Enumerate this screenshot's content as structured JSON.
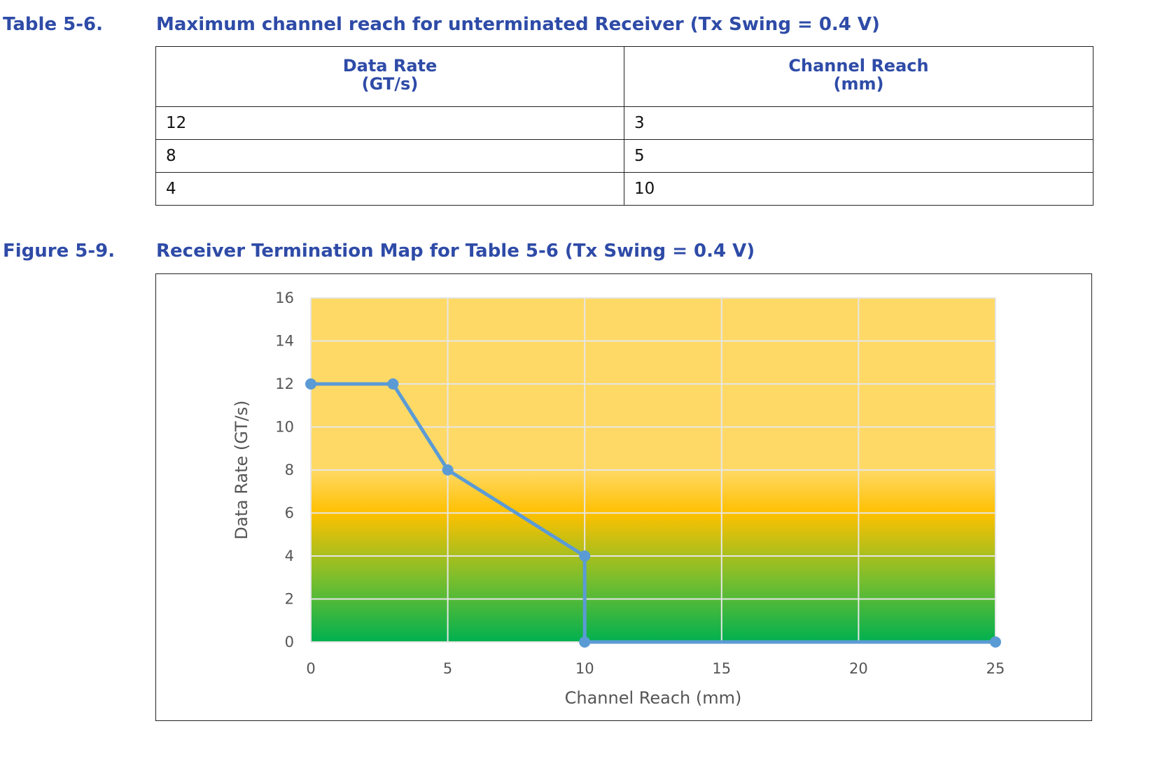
{
  "table": {
    "number": "Table 5-6.",
    "title": "Maximum channel reach for unterminated Receiver (Tx Swing = 0.4 V)",
    "headers": [
      {
        "line1": "Data Rate",
        "line2": "(GT/s)"
      },
      {
        "line1": "Channel Reach",
        "line2": "(mm)"
      }
    ],
    "rows": [
      [
        "12",
        "3"
      ],
      [
        "8",
        "5"
      ],
      [
        "4",
        "10"
      ]
    ]
  },
  "figure": {
    "number": "Figure 5-9.",
    "title": "Receiver Termination Map for Table 5-6 (Tx Swing = 0.4 V)"
  },
  "chart_data": {
    "type": "line",
    "title": "",
    "xlabel": "Channel Reach (mm)",
    "ylabel": "Data Rate (GT/s)",
    "xlim": [
      0,
      25
    ],
    "ylim": [
      0,
      16
    ],
    "xticks": [
      0,
      5,
      10,
      15,
      20,
      25
    ],
    "yticks": [
      0,
      2,
      4,
      6,
      8,
      10,
      12,
      14,
      16
    ],
    "grid": true,
    "legend": "none",
    "series": [
      {
        "x": [
          0,
          3,
          5,
          10,
          10,
          25
        ],
        "y": [
          12,
          12,
          8,
          4,
          0,
          0
        ],
        "color": "#5B9BD5"
      }
    ],
    "background_gradient": [
      {
        "value": 0,
        "color": "#00B050"
      },
      {
        "value": 3,
        "color": "#7DBE2C"
      },
      {
        "value": 6,
        "color": "#FFC000"
      },
      {
        "value": 8,
        "color": "#FFD966"
      },
      {
        "value": 16,
        "color": "#FFD966"
      }
    ],
    "grid_color": "#E6E6E6"
  }
}
